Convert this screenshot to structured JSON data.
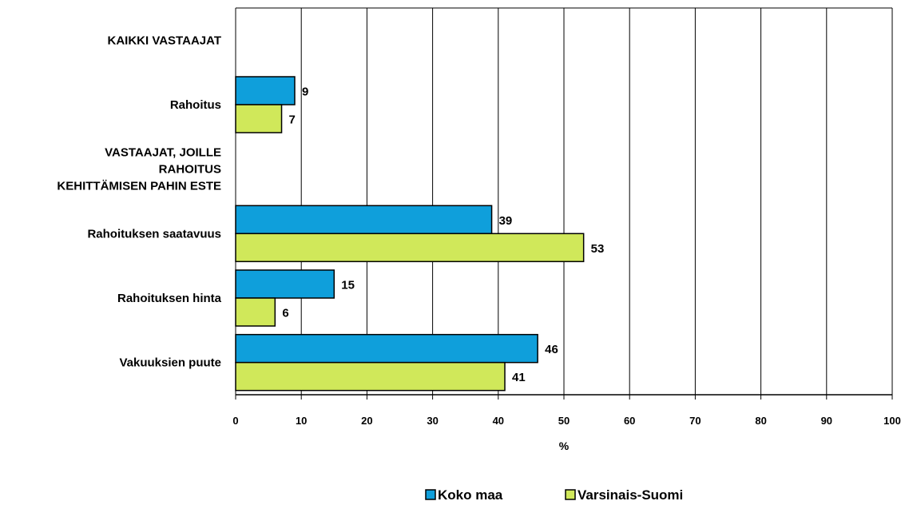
{
  "chart_data": {
    "type": "bar",
    "orientation": "horizontal",
    "categories": [
      {
        "label_lines": [
          "KAIKKI VASTAAJAT"
        ],
        "is_header": true
      },
      {
        "label_lines": [
          "Rahoitus"
        ],
        "is_header": false
      },
      {
        "label_lines": [
          "VASTAAJAT, JOILLE",
          "RAHOITUS",
          "KEHITTÄMISEN PAHIN ESTE"
        ],
        "is_header": true
      },
      {
        "label_lines": [
          "Rahoituksen saatavuus"
        ],
        "is_header": false
      },
      {
        "label_lines": [
          "Rahoituksen hinta"
        ],
        "is_header": false
      },
      {
        "label_lines": [
          "Vakuuksien puute"
        ],
        "is_header": false
      }
    ],
    "series": [
      {
        "name": "Koko maa",
        "color": "#0F9FDB",
        "values": [
          null,
          9,
          null,
          39,
          15,
          46
        ]
      },
      {
        "name": "Varsinais-Suomi",
        "color": "#D0E85A",
        "values": [
          null,
          7,
          null,
          53,
          6,
          41
        ]
      }
    ],
    "xlabel": "%",
    "xlim": [
      0,
      100
    ],
    "xticks": [
      0,
      10,
      20,
      30,
      40,
      50,
      60,
      70,
      80,
      90,
      100
    ],
    "grid": true,
    "legend_position": "bottom",
    "data_labels": true
  }
}
